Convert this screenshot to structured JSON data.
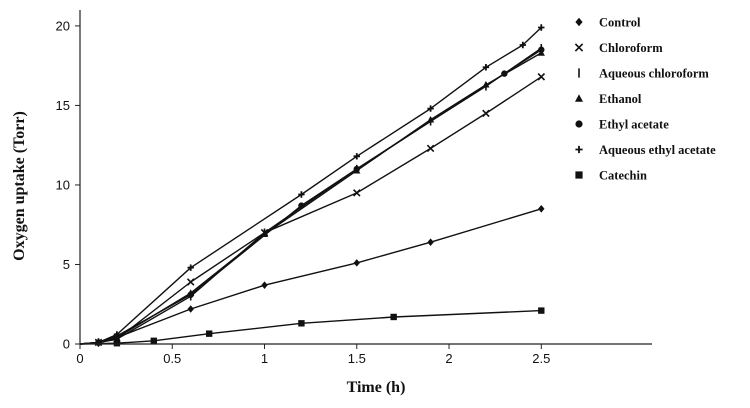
{
  "chart_data": {
    "type": "line",
    "xlabel": "Time (h)",
    "ylabel": "Oxygen uptake (Torr)",
    "xlim": [
      0,
      3.1
    ],
    "ylim": [
      0,
      21
    ],
    "x_ticks": [
      "0",
      "0.5",
      "1",
      "1.5",
      "2",
      "2.5"
    ],
    "y_ticks": [
      "0",
      "5",
      "10",
      "15",
      "20"
    ],
    "grid": false,
    "legend_position": "right",
    "series": [
      {
        "name": "Control",
        "marker": "diamond",
        "points": [
          [
            0,
            0
          ],
          [
            0.1,
            0.05
          ],
          [
            0.2,
            0.4
          ],
          [
            0.6,
            2.2
          ],
          [
            1.0,
            3.7
          ],
          [
            1.5,
            5.1
          ],
          [
            1.9,
            6.4
          ],
          [
            2.5,
            8.5
          ]
        ]
      },
      {
        "name": "Chloroform",
        "marker": "x",
        "points": [
          [
            0,
            0
          ],
          [
            0.1,
            0.1
          ],
          [
            0.2,
            0.3
          ],
          [
            0.6,
            3.9
          ],
          [
            1.0,
            7.0
          ],
          [
            1.5,
            9.5
          ],
          [
            1.9,
            12.3
          ],
          [
            2.2,
            14.5
          ],
          [
            2.5,
            16.8
          ]
        ]
      },
      {
        "name": "Aqueous  chloroform",
        "marker": "bar",
        "points": [
          [
            0,
            0
          ],
          [
            0.1,
            0.1
          ],
          [
            0.2,
            0.3
          ],
          [
            0.6,
            3.0
          ],
          [
            1.0,
            7.0
          ],
          [
            1.5,
            11.0
          ],
          [
            1.9,
            14.0
          ],
          [
            2.2,
            16.2
          ],
          [
            2.5,
            18.6
          ]
        ]
      },
      {
        "name": "Ethanol",
        "marker": "triangle",
        "points": [
          [
            0,
            0
          ],
          [
            0.1,
            0.1
          ],
          [
            0.2,
            0.4
          ],
          [
            0.6,
            3.2
          ],
          [
            1.0,
            6.9
          ],
          [
            1.5,
            10.9
          ],
          [
            1.9,
            14.1
          ],
          [
            2.2,
            16.3
          ],
          [
            2.5,
            18.3
          ]
        ]
      },
      {
        "name": "Ethyl acetate",
        "marker": "circle",
        "points": [
          [
            0,
            0
          ],
          [
            0.1,
            0.1
          ],
          [
            0.2,
            0.5
          ],
          [
            0.6,
            3.1
          ],
          [
            1.2,
            8.7
          ],
          [
            1.5,
            11.0
          ],
          [
            2.3,
            17.0
          ],
          [
            2.5,
            18.5
          ]
        ]
      },
      {
        "name": "Aqueous ethyl acetate",
        "marker": "plus",
        "points": [
          [
            0,
            0
          ],
          [
            0.1,
            0.1
          ],
          [
            0.2,
            0.6
          ],
          [
            0.6,
            4.8
          ],
          [
            1.2,
            9.4
          ],
          [
            1.5,
            11.8
          ],
          [
            1.9,
            14.8
          ],
          [
            2.2,
            17.4
          ],
          [
            2.4,
            18.8
          ],
          [
            2.5,
            19.9
          ]
        ]
      },
      {
        "name": "Catechin",
        "marker": "square",
        "points": [
          [
            0,
            0
          ],
          [
            0.2,
            0.05
          ],
          [
            0.4,
            0.2
          ],
          [
            0.7,
            0.65
          ],
          [
            1.2,
            1.3
          ],
          [
            1.7,
            1.7
          ],
          [
            2.5,
            2.1
          ]
        ]
      }
    ]
  }
}
